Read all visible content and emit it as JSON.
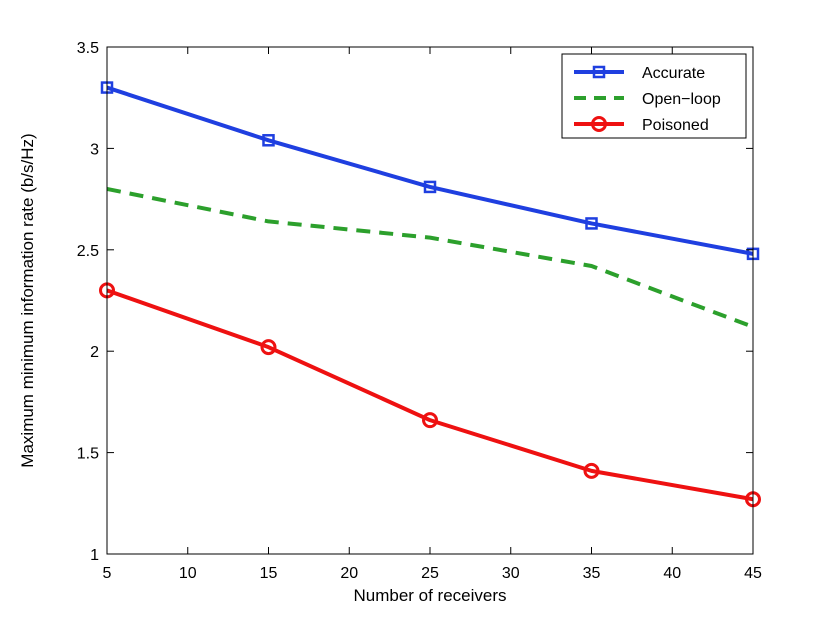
{
  "chart_data": {
    "type": "line",
    "title": "",
    "xlabel": "Number of receivers",
    "ylabel": "Maximum minimum information rate (b/s/Hz)",
    "xlim": [
      5,
      45
    ],
    "ylim": [
      1,
      3.5
    ],
    "xticks": [
      5,
      10,
      15,
      20,
      25,
      30,
      35,
      40,
      45
    ],
    "yticks": [
      1,
      1.5,
      2,
      2.5,
      3,
      3.5
    ],
    "xtick_labels": [
      "5",
      "10",
      "15",
      "20",
      "25",
      "30",
      "35",
      "40",
      "45"
    ],
    "ytick_labels": [
      "1",
      "1.5",
      "2",
      "2.5",
      "3",
      "3.5"
    ],
    "grid": false,
    "legend_position": "top-right",
    "x": [
      5,
      15,
      25,
      35,
      45
    ],
    "series": [
      {
        "name": "Accurate",
        "values": [
          3.3,
          3.04,
          2.81,
          2.63,
          2.48
        ],
        "color": "#1f3fe0",
        "marker": "square",
        "dash": "solid"
      },
      {
        "name": "Open−loop",
        "values": [
          2.8,
          2.64,
          2.56,
          2.42,
          2.12
        ],
        "color": "#2ca02c",
        "marker": "none",
        "dash": "dashed"
      },
      {
        "name": "Poisoned",
        "values": [
          2.3,
          2.02,
          1.66,
          1.41,
          1.27
        ],
        "color": "#ee1111",
        "marker": "circle",
        "dash": "solid"
      }
    ]
  }
}
